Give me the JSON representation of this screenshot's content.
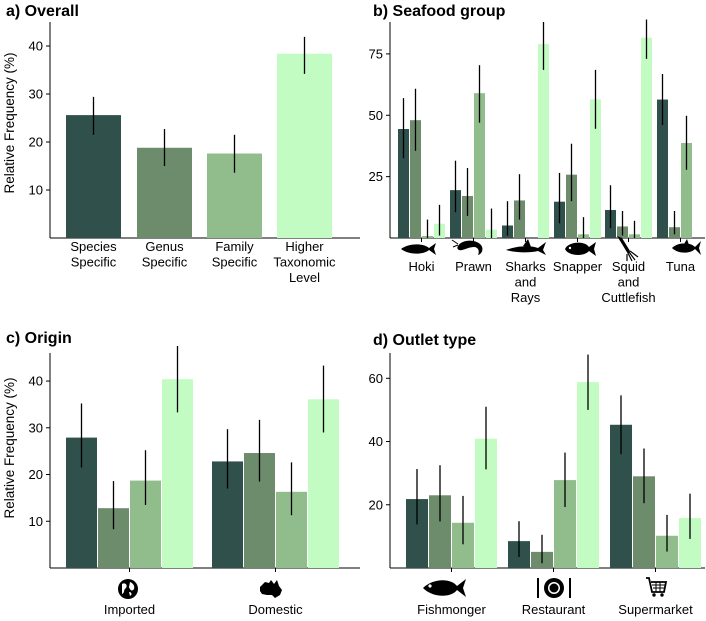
{
  "colors": [
    "#30504b",
    "#6d8c6b",
    "#91bc8c",
    "#c3fcc3"
  ],
  "chart_data": [
    {
      "id": "a",
      "type": "bar",
      "title": "a)  Overall",
      "ylabel": "Relative Frequency (%)",
      "ylim": [
        0,
        45
      ],
      "yticks": [
        10,
        20,
        30,
        40
      ],
      "categories": [
        [
          "Species",
          "Specific"
        ],
        [
          "Genus",
          "Specific"
        ],
        [
          "Family",
          "Specific"
        ],
        [
          "Higher",
          "Taxonomic",
          "Level"
        ]
      ],
      "values": [
        25.6,
        18.8,
        17.6,
        38.4
      ],
      "err_low": [
        21.5,
        15.0,
        13.6,
        34.2
      ],
      "err_high": [
        29.4,
        22.7,
        21.5,
        41.9
      ],
      "bar_colors": [
        0,
        1,
        2,
        3
      ]
    },
    {
      "id": "b",
      "type": "bar",
      "title": "b) Seafood group",
      "ylabel": "",
      "ylim": [
        0,
        88
      ],
      "yticks": [
        25,
        50,
        75
      ],
      "categories": [
        [
          "Hoki"
        ],
        [
          "Prawn"
        ],
        [
          "Sharks",
          "and",
          "Rays"
        ],
        [
          "Snapper"
        ],
        [
          "Squid",
          "and",
          "Cuttlefish"
        ],
        [
          "Tuna"
        ]
      ],
      "icons": [
        "fish-icon",
        "prawn-icon",
        "shark-icon",
        "snapper-icon",
        "squid-icon",
        "tuna-icon"
      ],
      "series": [
        {
          "name": "Species Specific",
          "values": [
            44.4,
            19.5,
            5.1,
            14.8,
            11.4,
            56.4
          ],
          "err_low": [
            32.5,
            10.5,
            1.0,
            6.0,
            4.0,
            46.0
          ],
          "err_high": [
            57.0,
            31.5,
            15.0,
            26.5,
            21.5,
            66.8
          ]
        },
        {
          "name": "Genus Specific",
          "values": [
            48.0,
            17.1,
            15.3,
            25.8,
            4.7,
            4.4
          ],
          "err_low": [
            35.5,
            9.0,
            7.5,
            15.0,
            1.0,
            1.5
          ],
          "err_high": [
            60.8,
            28.5,
            26.0,
            38.4,
            11.0,
            11.0
          ]
        },
        {
          "name": "Family Specific",
          "values": [
            0.8,
            59.0,
            0,
            1.5,
            1.5,
            38.7
          ],
          "err_low": [
            0,
            47.0,
            0,
            0,
            0,
            27.8
          ],
          "err_high": [
            7.5,
            70.4,
            0,
            8.5,
            7.0,
            49.8
          ]
        },
        {
          "name": "Higher Taxonomic Level",
          "values": [
            5.8,
            3.4,
            79.0,
            56.5,
            81.6,
            0
          ],
          "err_low": [
            1.0,
            0,
            68.5,
            44.5,
            73.0,
            0
          ],
          "err_high": [
            13.5,
            12.0,
            88.0,
            68.5,
            89.0,
            0
          ]
        }
      ]
    },
    {
      "id": "c",
      "type": "bar",
      "title": "c) Origin",
      "ylabel": "Relative Frequency (%)",
      "ylim": [
        0,
        46
      ],
      "yticks": [
        10,
        20,
        30,
        40
      ],
      "categories": [
        [
          "Imported"
        ],
        [
          "Domestic"
        ]
      ],
      "icons": [
        "globe-icon",
        "australia-icon"
      ],
      "series": [
        {
          "name": "Species Specific",
          "values": [
            27.9,
            22.8
          ],
          "err_low": [
            21.5,
            17.0
          ],
          "err_high": [
            35.2,
            29.7
          ]
        },
        {
          "name": "Genus Specific",
          "values": [
            12.8,
            24.6
          ],
          "err_low": [
            8.3,
            18.5
          ],
          "err_high": [
            18.6,
            31.7
          ]
        },
        {
          "name": "Family Specific",
          "values": [
            18.7,
            16.3
          ],
          "err_low": [
            13.5,
            11.3
          ],
          "err_high": [
            25.2,
            22.6
          ]
        },
        {
          "name": "Higher Taxonomic Level",
          "values": [
            40.4,
            36.1
          ],
          "err_low": [
            33.3,
            29.0
          ],
          "err_high": [
            47.5,
            43.3
          ]
        }
      ]
    },
    {
      "id": "d",
      "type": "bar",
      "title": "d) Outlet type",
      "ylabel": "",
      "ylim": [
        0,
        68
      ],
      "yticks": [
        20,
        40,
        60
      ],
      "categories": [
        [
          "Fishmonger"
        ],
        [
          "Restaurant"
        ],
        [
          "Supermarket"
        ]
      ],
      "icons": [
        "fish-icon",
        "plate-cutlery-icon",
        "shopping-cart-icon"
      ],
      "series": [
        {
          "name": "Species Specific",
          "values": [
            21.8,
            8.5,
            45.3
          ],
          "err_low": [
            13.8,
            3.5,
            36.0
          ],
          "err_high": [
            31.3,
            14.8,
            54.6
          ]
        },
        {
          "name": "Genus Specific",
          "values": [
            23.0,
            5.1,
            29.0
          ],
          "err_low": [
            14.7,
            1.5,
            20.5
          ],
          "err_high": [
            32.5,
            10.5,
            37.8
          ]
        },
        {
          "name": "Family Specific",
          "values": [
            14.3,
            27.8,
            10.2
          ],
          "err_low": [
            7.5,
            19.3,
            5.2
          ],
          "err_high": [
            22.8,
            36.5,
            16.8
          ]
        },
        {
          "name": "Higher Taxonomic Level",
          "values": [
            40.9,
            58.8,
            15.8
          ],
          "err_low": [
            31.2,
            50.0,
            9.2
          ],
          "err_high": [
            51.0,
            67.5,
            23.5
          ]
        }
      ]
    }
  ]
}
